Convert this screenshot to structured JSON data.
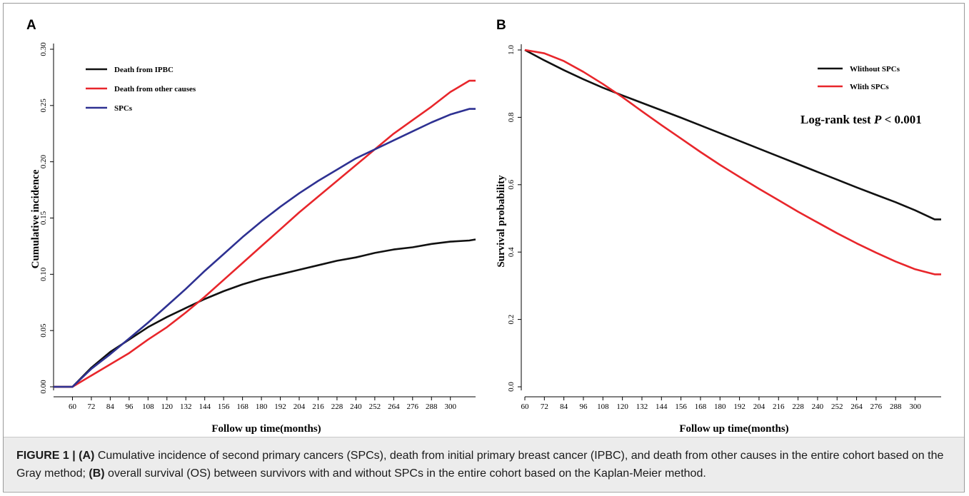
{
  "figure": {
    "caption": {
      "label": "FIGURE 1 |",
      "a_tag": "(A)",
      "a_text": " Cumulative incidence of second primary cancers (SPCs), death from initial primary breast cancer (IPBC), and death from other causes in the entire cohort based on the Gray method; ",
      "b_tag": "(B)",
      "b_text": " overall survival (OS) between survivors with and without SPCs in the entire cohort based on the Kaplan-Meier method."
    }
  },
  "chart_data": [
    {
      "panel": "A",
      "type": "line",
      "xlabel": "Follow up time(months)",
      "ylabel": "Cumulative incidence",
      "xlim": [
        48,
        316
      ],
      "ylim": [
        0,
        0.3
      ],
      "x_ticks": [
        "60",
        "72",
        "84",
        "96",
        "108",
        "120",
        "132",
        "144",
        "156",
        "168",
        "180",
        "192",
        "204",
        "216",
        "228",
        "240",
        "252",
        "264",
        "276",
        "288",
        "300"
      ],
      "y_ticks": [
        "0.00",
        "0.05",
        "0.10",
        "0.15",
        "0.20",
        "0.25",
        "0.30"
      ],
      "grid": false,
      "legend_position": "top-left",
      "colors": {
        "ipbc": "#111111",
        "other": "#e8262b",
        "spc": "#2e3192"
      },
      "x": [
        48,
        60,
        72,
        84,
        96,
        108,
        120,
        132,
        144,
        156,
        168,
        180,
        192,
        204,
        216,
        228,
        240,
        252,
        264,
        276,
        288,
        300,
        312,
        316
      ],
      "series": [
        {
          "name": "Death from IPBC",
          "color": "#111111",
          "values": [
            0,
            0,
            0.017,
            0.031,
            0.042,
            0.053,
            0.062,
            0.07,
            0.078,
            0.085,
            0.091,
            0.096,
            0.1,
            0.104,
            0.108,
            0.112,
            0.115,
            0.119,
            0.122,
            0.124,
            0.127,
            0.129,
            0.13,
            0.131
          ]
        },
        {
          "name": "Death from other causes",
          "color": "#e8262b",
          "values": [
            0,
            0,
            0.01,
            0.02,
            0.03,
            0.042,
            0.053,
            0.066,
            0.08,
            0.095,
            0.11,
            0.125,
            0.14,
            0.155,
            0.169,
            0.183,
            0.197,
            0.211,
            0.225,
            0.237,
            0.249,
            0.262,
            0.272,
            0.272
          ]
        },
        {
          "name": "SPCs",
          "color": "#2e3192",
          "values": [
            0,
            0,
            0.016,
            0.029,
            0.043,
            0.057,
            0.072,
            0.087,
            0.103,
            0.118,
            0.133,
            0.147,
            0.16,
            0.172,
            0.183,
            0.193,
            0.203,
            0.211,
            0.219,
            0.227,
            0.235,
            0.242,
            0.247,
            0.247
          ]
        }
      ]
    },
    {
      "panel": "B",
      "type": "line",
      "xlabel": "Follow up time(months)",
      "ylabel": "Survival probability",
      "xlim": [
        60,
        316
      ],
      "ylim": [
        0,
        1.0
      ],
      "x_ticks": [
        "60",
        "72",
        "84",
        "96",
        "108",
        "120",
        "132",
        "144",
        "156",
        "168",
        "180",
        "192",
        "204",
        "216",
        "228",
        "240",
        "252",
        "264",
        "276",
        "288",
        "300"
      ],
      "y_ticks": [
        "0.0",
        "0.2",
        "0.4",
        "0.6",
        "0.8",
        "1.0"
      ],
      "grid": false,
      "legend_position": "top-right",
      "annotation_prefix": "Log-rank test ",
      "annotation_p": "P",
      "annotation_suffix": " < 0.001",
      "colors": {
        "without": "#111111",
        "with": "#e8262b"
      },
      "x": [
        60,
        72,
        84,
        96,
        108,
        120,
        132,
        144,
        156,
        168,
        180,
        192,
        204,
        216,
        228,
        240,
        252,
        264,
        276,
        288,
        300,
        312,
        316
      ],
      "series": [
        {
          "name": "Wlithout SPCs",
          "color": "#111111",
          "values": [
            1.0,
            0.969,
            0.94,
            0.913,
            0.888,
            0.865,
            0.843,
            0.821,
            0.799,
            0.776,
            0.753,
            0.73,
            0.707,
            0.684,
            0.661,
            0.638,
            0.615,
            0.592,
            0.57,
            0.548,
            0.524,
            0.497,
            0.497
          ]
        },
        {
          "name": "Wlith SPCs",
          "color": "#e8262b",
          "values": [
            1.0,
            0.99,
            0.967,
            0.935,
            0.899,
            0.86,
            0.818,
            0.777,
            0.737,
            0.697,
            0.659,
            0.623,
            0.588,
            0.554,
            0.52,
            0.488,
            0.456,
            0.426,
            0.398,
            0.372,
            0.349,
            0.334,
            0.334
          ]
        }
      ]
    }
  ]
}
